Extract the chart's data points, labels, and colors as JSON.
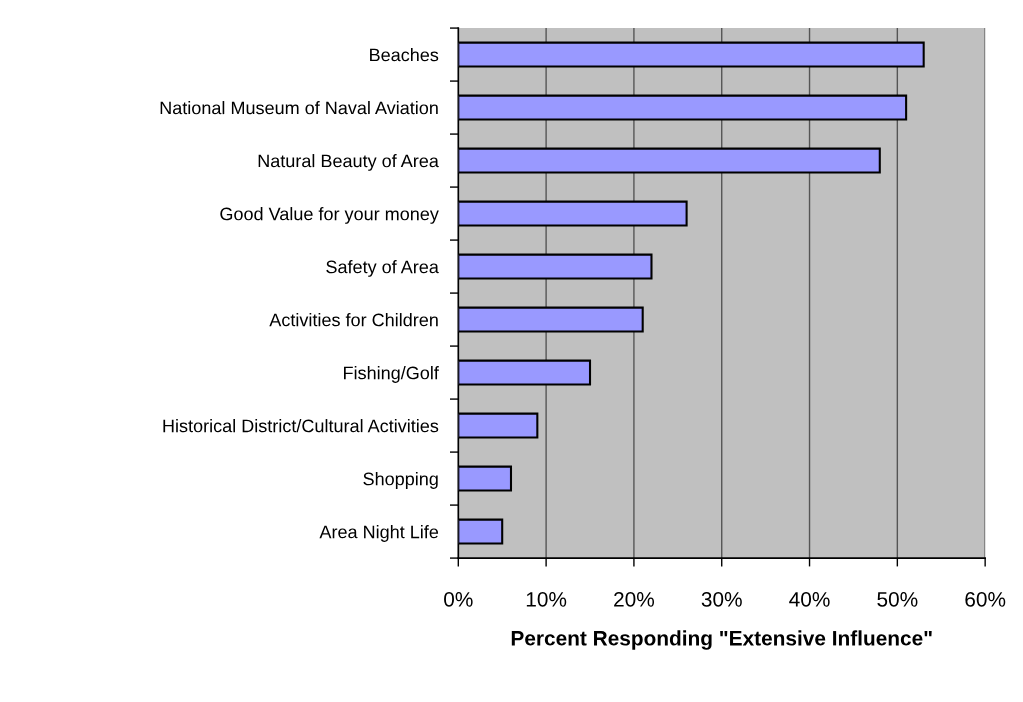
{
  "chart_data": {
    "type": "bar",
    "orientation": "horizontal",
    "categories": [
      "Beaches",
      "National Museum of Naval Aviation",
      "Natural Beauty of Area",
      "Good Value for your money",
      "Safety of Area",
      "Activities for Children",
      "Fishing/Golf",
      "Historical District/Cultural Activities",
      "Shopping",
      "Area Night Life"
    ],
    "values": [
      53,
      51,
      48,
      26,
      22,
      21,
      15,
      9,
      6,
      5
    ],
    "color": "#9999ff",
    "xlabel": "Percent Responding \"Extensive Influence\"",
    "xlim": [
      0,
      60
    ],
    "xticks": [
      {
        "value": 0,
        "label": "0%"
      },
      {
        "value": 10,
        "label": "10%"
      },
      {
        "value": 20,
        "label": "20%"
      },
      {
        "value": 30,
        "label": "30%"
      },
      {
        "value": 40,
        "label": "40%"
      },
      {
        "value": 50,
        "label": "50%"
      },
      {
        "value": 60,
        "label": "60%"
      }
    ],
    "grid": "x"
  }
}
